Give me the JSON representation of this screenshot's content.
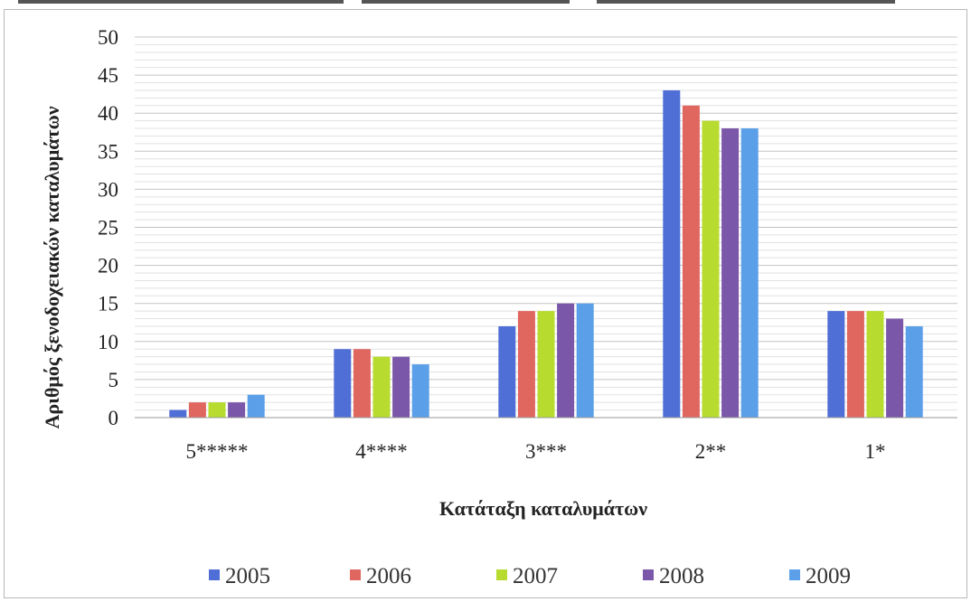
{
  "chart_data": {
    "type": "bar",
    "title": "",
    "xlabel": "Κατάταξη καταλυμάτων",
    "ylabel": "Αριθμός ξενοδοχειακών καταλυμάτων",
    "categories": [
      "5*****",
      "4****",
      "3***",
      "2**",
      "1*"
    ],
    "ylim": [
      0,
      50
    ],
    "yticks": [
      0,
      5,
      10,
      15,
      20,
      25,
      30,
      35,
      40,
      45,
      50
    ],
    "grid": true,
    "legend_position": "bottom",
    "series": [
      {
        "name": "2005",
        "color": "#4F6FD6",
        "values": [
          1,
          9,
          12,
          43,
          14
        ]
      },
      {
        "name": "2006",
        "color": "#E0675F",
        "values": [
          2,
          9,
          14,
          41,
          14
        ]
      },
      {
        "name": "2007",
        "color": "#B7DB2E",
        "values": [
          2,
          8,
          14,
          39,
          14
        ]
      },
      {
        "name": "2008",
        "color": "#7A57A8",
        "values": [
          2,
          8,
          15,
          38,
          13
        ]
      },
      {
        "name": "2009",
        "color": "#5B9FE8",
        "values": [
          3,
          7,
          15,
          38,
          12
        ]
      }
    ]
  }
}
